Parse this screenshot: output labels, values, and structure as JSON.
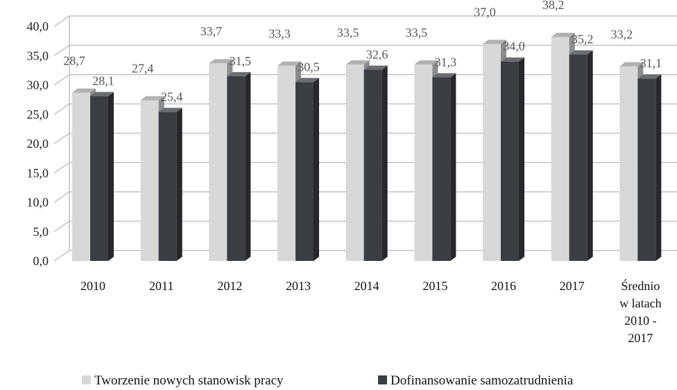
{
  "chart_data": {
    "type": "bar",
    "style": "3d-clustered-column",
    "categories": [
      [
        "2010"
      ],
      [
        "2011"
      ],
      [
        "2012"
      ],
      [
        "2013"
      ],
      [
        "2014"
      ],
      [
        "2015"
      ],
      [
        "2016"
      ],
      [
        "2017"
      ],
      [
        "Średnio",
        "w latach",
        "2010 -",
        "2017"
      ]
    ],
    "series": [
      {
        "name": "Tworzenie nowych stanowisk pracy",
        "color": "#d8d8d8",
        "values": [
          28.7,
          27.4,
          33.7,
          33.3,
          33.5,
          33.5,
          37.0,
          38.2,
          33.2
        ],
        "labels": [
          "28,7",
          "27,4",
          "33,7",
          "33,3",
          "33,5",
          "33,5",
          "37,0",
          "38,2",
          "33,2"
        ]
      },
      {
        "name": "Dofinansowanie samozatrudnienia",
        "color": "#3a3d42",
        "values": [
          28.1,
          25.4,
          31.5,
          30.5,
          32.6,
          31.3,
          34.0,
          35.2,
          31.1
        ],
        "labels": [
          "28,1",
          "25,4",
          "31,5",
          "30,5",
          "32,6",
          "31,3",
          "34,0",
          "35,2",
          "31,1"
        ]
      }
    ],
    "ylim": [
      0,
      40
    ],
    "yticks": [
      "0,0",
      "5,0",
      "10,0",
      "15,0",
      "20,0",
      "25,0",
      "30,0",
      "35,0",
      "40,0"
    ],
    "grid": true,
    "legend": "bottom",
    "title": "",
    "xlabel": "",
    "ylabel": ""
  }
}
